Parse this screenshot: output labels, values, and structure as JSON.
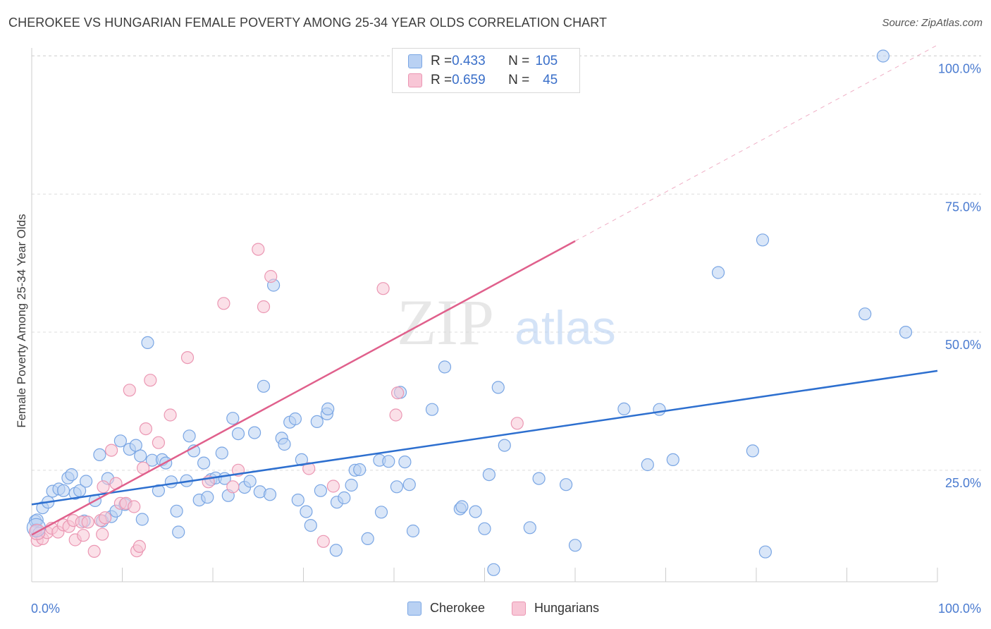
{
  "title": "CHEROKEE VS HUNGARIAN FEMALE POVERTY AMONG 25-34 YEAR OLDS CORRELATION CHART",
  "source": "Source: ZipAtlas.com",
  "watermark": {
    "zip": "ZIP",
    "atlas": "atlas"
  },
  "legend": {
    "cherokee": {
      "r_label": "R = ",
      "r_value": "0.433",
      "n_label": "N = ",
      "n_value": "105"
    },
    "hungarians": {
      "r_label": "R = ",
      "r_value": "0.659",
      "n_label": "N = ",
      "n_value": "45"
    }
  },
  "colors": {
    "cherokee_fill": "#b9d1f3",
    "cherokee_stroke": "#7aa6e4",
    "cherokee_line": "#2d6fcf",
    "hungarians_fill": "#f8c6d6",
    "hungarians_stroke": "#eb97b3",
    "hungarians_line": "#e0608c",
    "axis_text": "#4a7bd0",
    "grid": "#dddddd"
  },
  "chart_data": {
    "type": "scatter",
    "xlabel": "",
    "ylabel": "Female Poverty Among 25-34 Year Olds",
    "xlim": [
      0,
      100
    ],
    "ylim": [
      0,
      105
    ],
    "x_tick_labels": [
      "0.0%",
      "100.0%"
    ],
    "y_tick_labels": [
      {
        "value": 25,
        "label": "25.0%"
      },
      {
        "value": 50,
        "label": "50.0%"
      },
      {
        "value": 75,
        "label": "75.0%"
      },
      {
        "value": 100,
        "label": "100.0%"
      }
    ],
    "grid": true,
    "legend_position": "top-center",
    "series": [
      {
        "name": "Cherokee",
        "trend": {
          "x": [
            0,
            100
          ],
          "y": [
            18.8,
            43.0
          ],
          "dashed_extension": false
        },
        "points": [
          [
            0.4,
            15.8
          ],
          [
            0.5,
            14.2
          ],
          [
            0.6,
            16.0
          ],
          [
            0.8,
            13.6
          ],
          [
            1.2,
            18.2
          ],
          [
            1.8,
            19.2
          ],
          [
            2.3,
            21.2
          ],
          [
            3.0,
            21.6
          ],
          [
            3.5,
            21.3
          ],
          [
            4.0,
            23.6
          ],
          [
            4.4,
            24.2
          ],
          [
            4.8,
            20.8
          ],
          [
            5.3,
            21.3
          ],
          [
            6.0,
            23.0
          ],
          [
            5.8,
            15.8
          ],
          [
            7.0,
            19.5
          ],
          [
            7.5,
            27.8
          ],
          [
            7.8,
            15.8
          ],
          [
            8.4,
            23.5
          ],
          [
            8.8,
            16.6
          ],
          [
            9.3,
            17.6
          ],
          [
            9.8,
            30.3
          ],
          [
            10.3,
            18.8
          ],
          [
            10.8,
            28.8
          ],
          [
            11.5,
            29.5
          ],
          [
            12.0,
            27.6
          ],
          [
            12.2,
            16.1
          ],
          [
            12.8,
            48.1
          ],
          [
            13.3,
            26.8
          ],
          [
            14.0,
            21.3
          ],
          [
            14.4,
            26.9
          ],
          [
            14.8,
            26.3
          ],
          [
            15.4,
            22.9
          ],
          [
            16.0,
            17.6
          ],
          [
            16.2,
            13.8
          ],
          [
            17.1,
            23.1
          ],
          [
            17.4,
            31.2
          ],
          [
            17.9,
            28.5
          ],
          [
            18.5,
            19.6
          ],
          [
            19.0,
            26.3
          ],
          [
            19.4,
            20.1
          ],
          [
            19.8,
            23.3
          ],
          [
            20.3,
            23.6
          ],
          [
            21.0,
            28.1
          ],
          [
            21.3,
            23.5
          ],
          [
            21.7,
            20.4
          ],
          [
            22.2,
            34.4
          ],
          [
            22.8,
            31.6
          ],
          [
            23.5,
            21.9
          ],
          [
            24.1,
            23.0
          ],
          [
            24.6,
            31.8
          ],
          [
            25.2,
            21.1
          ],
          [
            25.6,
            40.2
          ],
          [
            26.3,
            20.6
          ],
          [
            26.7,
            58.5
          ],
          [
            27.6,
            30.8
          ],
          [
            27.9,
            29.7
          ],
          [
            28.5,
            33.7
          ],
          [
            29.1,
            34.3
          ],
          [
            29.4,
            19.6
          ],
          [
            29.8,
            26.9
          ],
          [
            30.3,
            17.5
          ],
          [
            30.8,
            15.0
          ],
          [
            31.5,
            33.8
          ],
          [
            31.9,
            21.3
          ],
          [
            32.6,
            35.2
          ],
          [
            32.7,
            36.1
          ],
          [
            33.6,
            10.5
          ],
          [
            33.7,
            19.2
          ],
          [
            34.5,
            20.0
          ],
          [
            35.3,
            22.3
          ],
          [
            35.7,
            25.0
          ],
          [
            36.2,
            25.1
          ],
          [
            37.1,
            12.6
          ],
          [
            38.4,
            26.8
          ],
          [
            38.6,
            17.4
          ],
          [
            39.4,
            26.6
          ],
          [
            40.3,
            22.0
          ],
          [
            40.7,
            39.1
          ],
          [
            41.2,
            26.5
          ],
          [
            41.7,
            22.4
          ],
          [
            42.1,
            14.0
          ],
          [
            44.2,
            36.0
          ],
          [
            45.6,
            43.7
          ],
          [
            47.3,
            18.0
          ],
          [
            47.5,
            18.4
          ],
          [
            49.0,
            17.5
          ],
          [
            50.0,
            14.4
          ],
          [
            50.5,
            24.2
          ],
          [
            51.0,
            7.0
          ],
          [
            51.5,
            40.0
          ],
          [
            52.2,
            29.5
          ],
          [
            55.0,
            14.6
          ],
          [
            56.0,
            23.5
          ],
          [
            59.0,
            22.4
          ],
          [
            60.0,
            11.4
          ],
          [
            65.4,
            36.1
          ],
          [
            68.0,
            26.0
          ],
          [
            69.3,
            36.0
          ],
          [
            70.8,
            26.9
          ],
          [
            75.8,
            60.8
          ],
          [
            79.6,
            28.5
          ],
          [
            80.7,
            66.7
          ],
          [
            81.0,
            10.2
          ],
          [
            92.0,
            53.3
          ],
          [
            94.0,
            100.0
          ],
          [
            96.5,
            50.0
          ]
        ]
      },
      {
        "name": "Hungarians",
        "trend": {
          "x": [
            0,
            60
          ],
          "y": [
            13.3,
            66.5
          ],
          "extension_x": [
            60,
            100
          ],
          "extension_y": [
            66.5,
            102.0
          ]
        },
        "points": [
          [
            0.6,
            12.3
          ],
          [
            1.2,
            12.6
          ],
          [
            1.7,
            13.7
          ],
          [
            2.2,
            14.5
          ],
          [
            2.9,
            13.8
          ],
          [
            3.5,
            15.1
          ],
          [
            4.1,
            14.8
          ],
          [
            4.6,
            15.9
          ],
          [
            4.8,
            12.4
          ],
          [
            5.5,
            15.6
          ],
          [
            5.7,
            13.2
          ],
          [
            6.2,
            15.6
          ],
          [
            6.9,
            10.3
          ],
          [
            7.6,
            15.9
          ],
          [
            7.8,
            13.4
          ],
          [
            8.1,
            16.4
          ],
          [
            7.9,
            22.0
          ],
          [
            8.8,
            28.6
          ],
          [
            9.3,
            22.6
          ],
          [
            9.8,
            19.0
          ],
          [
            10.4,
            19.0
          ],
          [
            10.8,
            39.5
          ],
          [
            11.3,
            18.4
          ],
          [
            11.6,
            10.4
          ],
          [
            11.9,
            11.2
          ],
          [
            12.3,
            25.4
          ],
          [
            12.6,
            32.5
          ],
          [
            13.1,
            41.3
          ],
          [
            14.0,
            30.0
          ],
          [
            15.3,
            35.0
          ],
          [
            17.2,
            45.4
          ],
          [
            19.5,
            22.9
          ],
          [
            21.2,
            55.2
          ],
          [
            22.2,
            22.0
          ],
          [
            22.8,
            25.0
          ],
          [
            25.0,
            65.0
          ],
          [
            25.6,
            54.6
          ],
          [
            26.4,
            60.1
          ],
          [
            30.6,
            25.3
          ],
          [
            32.2,
            12.1
          ],
          [
            33.3,
            22.1
          ],
          [
            38.8,
            57.9
          ],
          [
            40.2,
            35.0
          ],
          [
            40.4,
            39.0
          ],
          [
            53.6,
            33.5
          ]
        ]
      }
    ]
  }
}
